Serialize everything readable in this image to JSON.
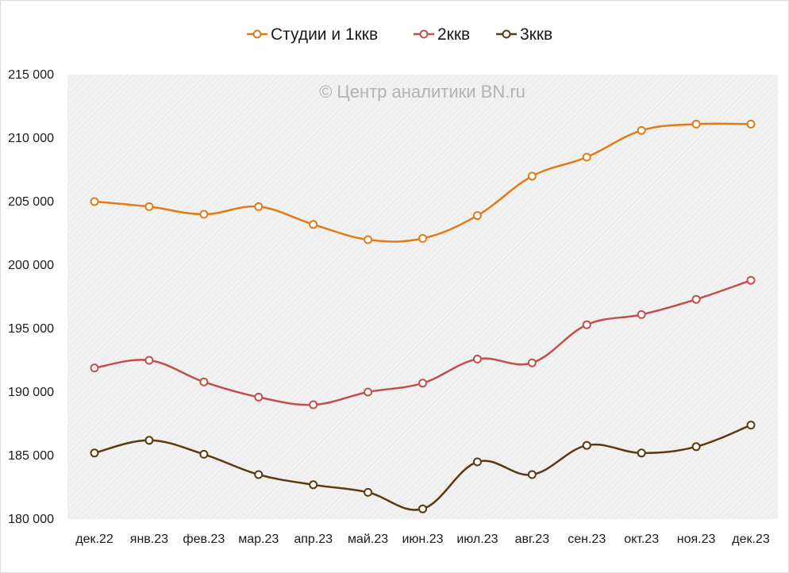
{
  "chart_data": {
    "type": "line",
    "watermark": "© Центр аналитики BN.ru",
    "categories": [
      "дек.22",
      "янв.23",
      "фев.23",
      "мар.23",
      "апр.23",
      "май.23",
      "июн.23",
      "июл.23",
      "авг.23",
      "сен.23",
      "окт.23",
      "ноя.23",
      "дек.23"
    ],
    "ylim": [
      180000,
      215000
    ],
    "yticks": [
      180000,
      185000,
      190000,
      195000,
      200000,
      205000,
      210000,
      215000
    ],
    "ytick_labels": [
      "180 000",
      "185 000",
      "190 000",
      "195 000",
      "200 000",
      "205 000",
      "210 000",
      "215 000"
    ],
    "grid": false,
    "legend_position": "top",
    "series": [
      {
        "name": "Студии и 1ккв",
        "color": "#E07B17",
        "values": [
          205000,
          204600,
          204000,
          204600,
          203200,
          202000,
          202100,
          203900,
          207000,
          208500,
          210600,
          211100,
          211100
        ]
      },
      {
        "name": "2ккв",
        "color": "#C0504D",
        "values": [
          191900,
          192500,
          190800,
          189600,
          189000,
          190000,
          190700,
          192600,
          192300,
          195300,
          196100,
          197300,
          198800
        ]
      },
      {
        "name": "3ккв",
        "color": "#5A3A10",
        "values": [
          185200,
          186200,
          185100,
          183500,
          182700,
          182100,
          180800,
          184500,
          183500,
          185800,
          185200,
          185700,
          187400
        ]
      }
    ]
  }
}
